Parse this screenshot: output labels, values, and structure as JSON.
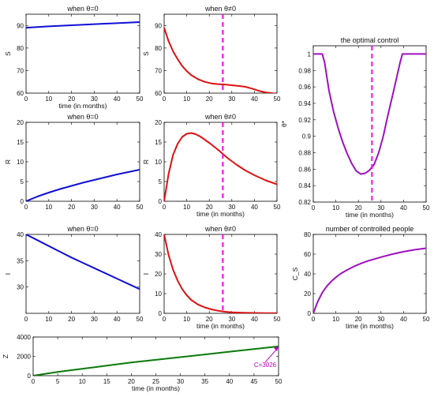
{
  "chart_data": [
    {
      "id": "s0",
      "type": "line",
      "title": "when θ=0",
      "xlabel": "time (in months)",
      "ylabel": "S",
      "xlim": [
        0,
        50
      ],
      "ylim": [
        60,
        95
      ],
      "xticks": [
        0,
        10,
        20,
        30,
        40,
        50
      ],
      "yticks": [
        60,
        70,
        80,
        90
      ],
      "series": [
        {
          "color": "#1010d8",
          "x": [
            0,
            10,
            20,
            30,
            40,
            50
          ],
          "y": [
            89.0,
            89.6,
            90.1,
            90.6,
            91.0,
            91.5
          ]
        }
      ]
    },
    {
      "id": "s1",
      "type": "line",
      "title": "when θ≠0",
      "xlabel": "",
      "ylabel": "S",
      "xlim": [
        0,
        50
      ],
      "ylim": [
        60,
        95
      ],
      "xticks": [
        0,
        10,
        20,
        30,
        40,
        50
      ],
      "yticks": [
        60,
        70,
        80,
        90
      ],
      "vline": {
        "x": 26,
        "color": "#ff00ff"
      },
      "series": [
        {
          "color": "#e01010",
          "x": [
            0,
            2,
            4,
            6,
            8,
            10,
            12,
            15,
            18,
            21,
            24,
            27,
            30,
            33,
            36,
            39,
            42,
            45,
            48,
            50
          ],
          "y": [
            89.0,
            83.0,
            78.5,
            75.0,
            72.0,
            69.8,
            68.0,
            66.2,
            65.0,
            64.3,
            64.0,
            63.8,
            63.5,
            63.2,
            62.8,
            62.0,
            61.0,
            60.3,
            60.0,
            59.5
          ]
        }
      ]
    },
    {
      "id": "r0",
      "type": "line",
      "title": "when θ=0",
      "xlabel": "",
      "ylabel": "R",
      "xlim": [
        0,
        50
      ],
      "ylim": [
        0,
        20
      ],
      "xticks": [
        0,
        10,
        20,
        30,
        40,
        50
      ],
      "yticks": [
        0,
        5,
        10,
        15,
        20
      ],
      "series": [
        {
          "color": "#1010d8",
          "x": [
            0,
            5,
            10,
            15,
            20,
            25,
            30,
            35,
            40,
            45,
            50
          ],
          "y": [
            0,
            1.2,
            2.2,
            3.1,
            3.9,
            4.7,
            5.4,
            6.1,
            6.8,
            7.4,
            8.0
          ]
        }
      ]
    },
    {
      "id": "r1",
      "type": "line",
      "title": "when θ≠0",
      "xlabel": "time (in months)",
      "ylabel": "R",
      "xlim": [
        0,
        50
      ],
      "ylim": [
        0,
        20
      ],
      "xticks": [
        0,
        10,
        20,
        30,
        40,
        50
      ],
      "yticks": [
        0,
        5,
        10,
        15,
        20
      ],
      "vline": {
        "x": 26,
        "color": "#ff00ff"
      },
      "series": [
        {
          "color": "#e01010",
          "x": [
            0,
            2,
            4,
            6,
            8,
            10,
            12,
            14,
            16,
            18,
            20,
            24,
            28,
            32,
            36,
            40,
            45,
            50
          ],
          "y": [
            0,
            7.0,
            11.8,
            14.6,
            16.3,
            17.1,
            17.3,
            17.0,
            16.4,
            15.6,
            14.8,
            13.0,
            11.0,
            9.3,
            7.8,
            6.6,
            5.3,
            4.3
          ]
        }
      ]
    },
    {
      "id": "i0",
      "type": "line",
      "title": "when θ=0",
      "xlabel": "",
      "ylabel": "I",
      "xlim": [
        0,
        50
      ],
      "ylim": [
        25,
        40
      ],
      "xticks": [
        0,
        10,
        20,
        30,
        40,
        50
      ],
      "yticks": [
        30,
        35,
        40
      ],
      "series": [
        {
          "color": "#1010d8",
          "x": [
            0,
            5,
            10,
            15,
            20,
            25,
            30,
            35,
            40,
            45,
            50
          ],
          "y": [
            40.0,
            38.9,
            37.8,
            36.7,
            35.6,
            34.6,
            33.6,
            32.6,
            31.6,
            30.6,
            29.6
          ]
        }
      ]
    },
    {
      "id": "i1",
      "type": "line",
      "title": "when θ≠0",
      "xlabel": "time (in months)",
      "ylabel": "I",
      "xlim": [
        0,
        50
      ],
      "ylim": [
        0,
        40
      ],
      "xticks": [
        0,
        10,
        20,
        30,
        40,
        50
      ],
      "yticks": [
        0,
        10,
        20,
        30,
        40
      ],
      "vline": {
        "x": 26,
        "color": "#ff00ff"
      },
      "series": [
        {
          "color": "#e01010",
          "x": [
            0,
            2,
            4,
            6,
            8,
            10,
            12,
            15,
            18,
            21,
            24,
            27,
            30,
            35,
            40,
            45,
            50
          ],
          "y": [
            40.0,
            29.5,
            22.0,
            16.5,
            12.3,
            9.2,
            6.8,
            4.5,
            3.0,
            2.0,
            1.3,
            0.8,
            0.5,
            0.3,
            0.2,
            0.1,
            0.1
          ]
        }
      ]
    },
    {
      "id": "control",
      "type": "line",
      "title": "the optimal control",
      "xlabel": "time (in months)",
      "ylabel": "θ*",
      "xlim": [
        0,
        50
      ],
      "ylim": [
        0.82,
        1.01
      ],
      "xticks": [
        0,
        10,
        20,
        30,
        40,
        50
      ],
      "yticks": [
        0.82,
        0.84,
        0.86,
        0.88,
        0.9,
        0.92,
        0.94,
        0.96,
        0.98,
        1
      ],
      "vline": {
        "x": 26,
        "color": "#ff00ff"
      },
      "series": [
        {
          "color": "#a010c0",
          "x": [
            0,
            4,
            5,
            7,
            9,
            11,
            13,
            15,
            17,
            19,
            21,
            23,
            25,
            27,
            29,
            31,
            33,
            35,
            37,
            38.5,
            39.5,
            50
          ],
          "y": [
            1.0,
            1.0,
            0.99,
            0.955,
            0.93,
            0.91,
            0.893,
            0.879,
            0.867,
            0.858,
            0.854,
            0.855,
            0.859,
            0.866,
            0.88,
            0.9,
            0.925,
            0.948,
            0.972,
            0.99,
            1.0,
            1.0
          ]
        }
      ]
    },
    {
      "id": "cs",
      "type": "line",
      "title": "number of controlled people",
      "xlabel": "time (in months)",
      "ylabel": "C_S",
      "xlim": [
        0,
        50
      ],
      "ylim": [
        0,
        80
      ],
      "xticks": [
        0,
        10,
        20,
        30,
        40,
        50
      ],
      "yticks": [
        0,
        20,
        40,
        60,
        80
      ],
      "series": [
        {
          "color": "#a010c0",
          "x": [
            0,
            2,
            4,
            6,
            8,
            10,
            12,
            15,
            18,
            21,
            24,
            27,
            30,
            35,
            40,
            45,
            50
          ],
          "y": [
            0,
            12.0,
            21.0,
            27.5,
            32.5,
            36.5,
            40.0,
            44.0,
            47.5,
            50.5,
            53.0,
            55.0,
            57.0,
            60.0,
            62.5,
            64.5,
            66.0
          ]
        }
      ]
    },
    {
      "id": "z",
      "type": "line",
      "title": "",
      "xlabel": "time (in months)",
      "ylabel": "Z",
      "xlim": [
        0,
        50
      ],
      "ylim": [
        0,
        4000
      ],
      "xticks": [
        0,
        5,
        10,
        15,
        20,
        25,
        30,
        35,
        40,
        45,
        50
      ],
      "yticks": [
        0,
        2000,
        4000
      ],
      "series": [
        {
          "color": "#0a7a0a",
          "x": [
            0,
            5,
            10,
            15,
            20,
            25,
            30,
            35,
            40,
            45,
            50
          ],
          "y": [
            0,
            380,
            720,
            1040,
            1360,
            1640,
            1920,
            2200,
            2480,
            2750,
            3026
          ]
        }
      ],
      "annotation": {
        "text": "C=3026",
        "x": 50,
        "y": 3026,
        "color": "#c000c0"
      }
    }
  ]
}
